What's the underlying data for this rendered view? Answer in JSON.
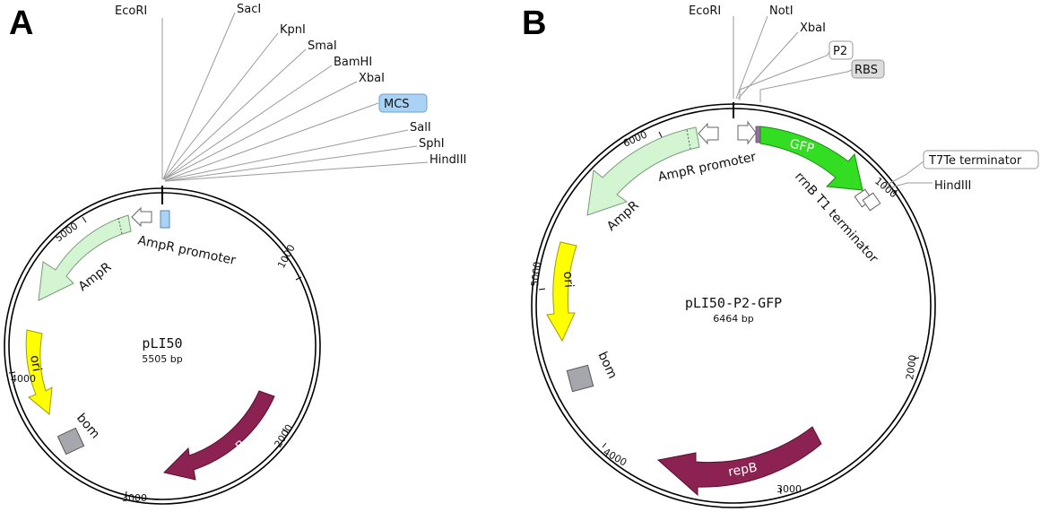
{
  "panels": [
    {
      "letter": "A",
      "plasmid_name": "pLI50",
      "plasmid_size": "5505 bp",
      "ticks": [
        "1000",
        "2000",
        "3000",
        "4000",
        "5000"
      ],
      "sites": [
        "EcoRI",
        "SacI",
        "KpnI",
        "SmaI",
        "BamHI",
        "XbaI",
        "MCS",
        "SalI",
        "SphI",
        "HindIII"
      ],
      "features": {
        "ampr_promoter": "AmpR promoter",
        "ampr": "AmpR",
        "ori": "ori",
        "bom": "bom",
        "repb": "repB"
      }
    },
    {
      "letter": "B",
      "plasmid_name": "pLI50-P2-GFP",
      "plasmid_size": "6464 bp",
      "ticks": [
        "1000",
        "2000",
        "3000",
        "4000",
        "5000",
        "6000"
      ],
      "sites": [
        "EcoRI",
        "NotI",
        "XbaI",
        "P2",
        "RBS",
        "T7Te terminator",
        "HindIII"
      ],
      "features": {
        "ampr_promoter": "AmpR promoter",
        "ampr": "AmpR",
        "ori": "ori",
        "bom": "bom",
        "repb": "repB",
        "gfp": "GFP",
        "rrnb": "rrnB T1 terminator"
      }
    }
  ],
  "colors": {
    "mcs": "#a9d3f5",
    "ampr": "#d3f5d2",
    "ori": "#ffff00",
    "bom": "#a5a7ad",
    "repb": "#8b2252",
    "gfp": "#33dd22",
    "label_box": "#dcdcdc"
  }
}
